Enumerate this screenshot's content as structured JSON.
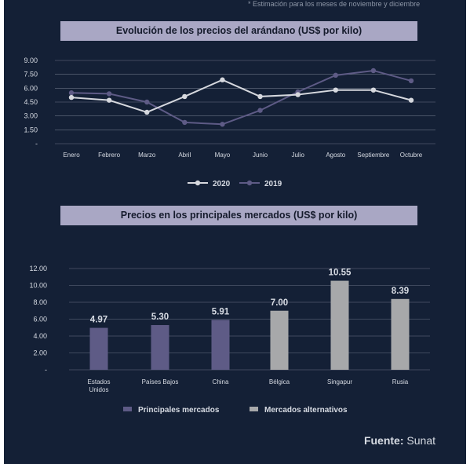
{
  "footnote": "* Estimación para los meses de noviembre y diciembre",
  "source": {
    "label": "Fuente:",
    "name": "Sunat"
  },
  "colors": {
    "background": "#142036",
    "banner": "#a9a7c4",
    "series_2020": "#d6d8de",
    "series_2019": "#5e5b86",
    "principal": "#5e5b86",
    "alternativo": "#a7a8aa",
    "grid": "#6b7385",
    "text": "#d7dbe3"
  },
  "chart_data": [
    {
      "type": "line",
      "title": "Evolución de los precios del arándano (US$ por kilo)",
      "categories": [
        "Enero",
        "Febrero",
        "Marzo",
        "Abril",
        "Mayo",
        "Junio",
        "Julio",
        "Agosto",
        "Septiembre",
        "Octubre"
      ],
      "y_ticks": [
        "-",
        "1.50",
        "3.00",
        "4.50",
        "6.00",
        "7.50",
        "9.00"
      ],
      "ylim": [
        0,
        9
      ],
      "grid": true,
      "legend_position": "bottom-center",
      "series": [
        {
          "name": "2020",
          "values": [
            5.0,
            4.7,
            3.4,
            5.1,
            6.9,
            5.1,
            5.3,
            5.8,
            5.8,
            4.7
          ]
        },
        {
          "name": "2019",
          "values": [
            5.5,
            5.4,
            4.5,
            2.3,
            2.1,
            3.6,
            5.6,
            7.4,
            7.9,
            6.8
          ]
        }
      ]
    },
    {
      "type": "bar",
      "title": "Precios en los principales mercados (US$ por kilo)",
      "categories": [
        "Estados Unidos",
        "Países Bajos",
        "China",
        "Bélgica",
        "Singapur",
        "Rusia"
      ],
      "values": [
        4.97,
        5.3,
        5.91,
        7.0,
        10.55,
        8.39
      ],
      "value_labels": [
        "4.97",
        "5.30",
        "5.91",
        "7.00",
        "10.55",
        "8.39"
      ],
      "groups": [
        "principal",
        "principal",
        "principal",
        "alternativo",
        "alternativo",
        "alternativo"
      ],
      "y_ticks": [
        "-",
        "2.00",
        "4.00",
        "6.00",
        "8.00",
        "10.00",
        "12.00"
      ],
      "ylim": [
        0,
        12
      ],
      "grid": true,
      "legend_position": "bottom-center",
      "legend": [
        {
          "key": "principal",
          "label": "Principales mercados"
        },
        {
          "key": "alternativo",
          "label": "Mercados alternativos"
        }
      ]
    }
  ]
}
